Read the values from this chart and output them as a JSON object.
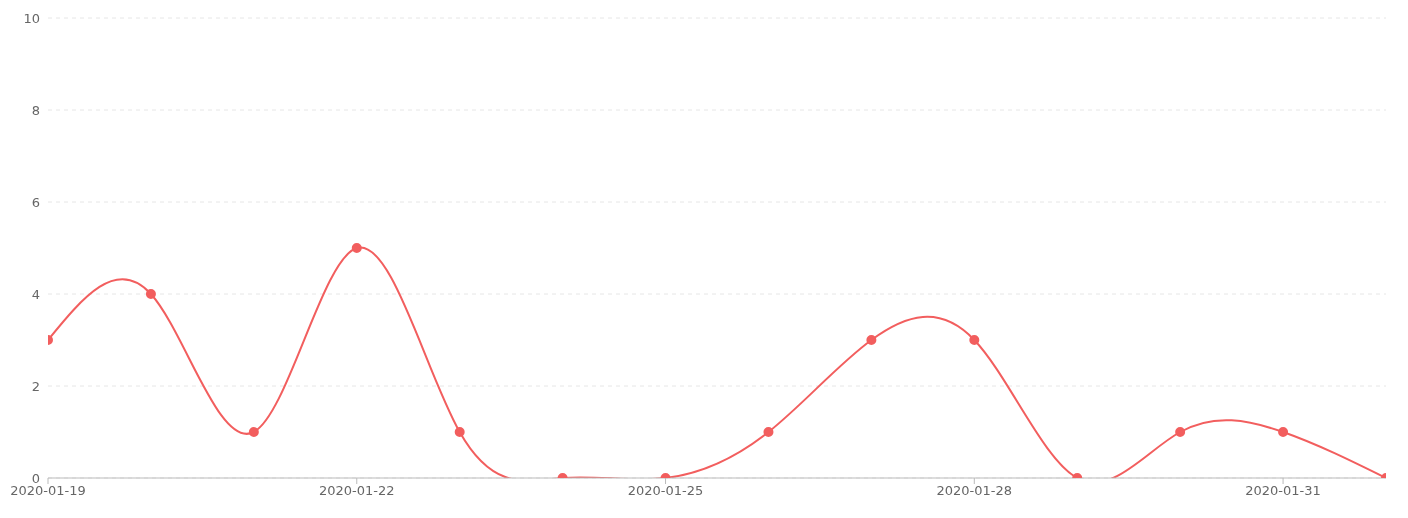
{
  "chart_data": {
    "type": "line",
    "x": [
      "2020-01-19",
      "2020-01-20",
      "2020-01-21",
      "2020-01-22",
      "2020-01-23",
      "2020-01-24",
      "2020-01-25",
      "2020-01-26",
      "2020-01-27",
      "2020-01-28",
      "2020-01-29",
      "2020-01-30",
      "2020-01-31",
      "2020-02-01"
    ],
    "series": [
      {
        "color": "#f25e5e",
        "values": [
          3,
          4,
          1,
          5,
          1,
          0,
          0,
          1,
          3,
          3,
          0,
          1,
          1,
          0
        ]
      }
    ],
    "xlim": [
      "2020-01-19",
      "2020-02-01"
    ],
    "xticks": [
      "2020-01-19",
      "2020-01-22",
      "2020-01-25",
      "2020-01-28",
      "2020-01-31"
    ],
    "ylim": [
      0,
      10
    ],
    "yticks": [
      0,
      2,
      4,
      6,
      8,
      10
    ],
    "grid": "y",
    "marker": "circle",
    "line_style": "solid"
  }
}
